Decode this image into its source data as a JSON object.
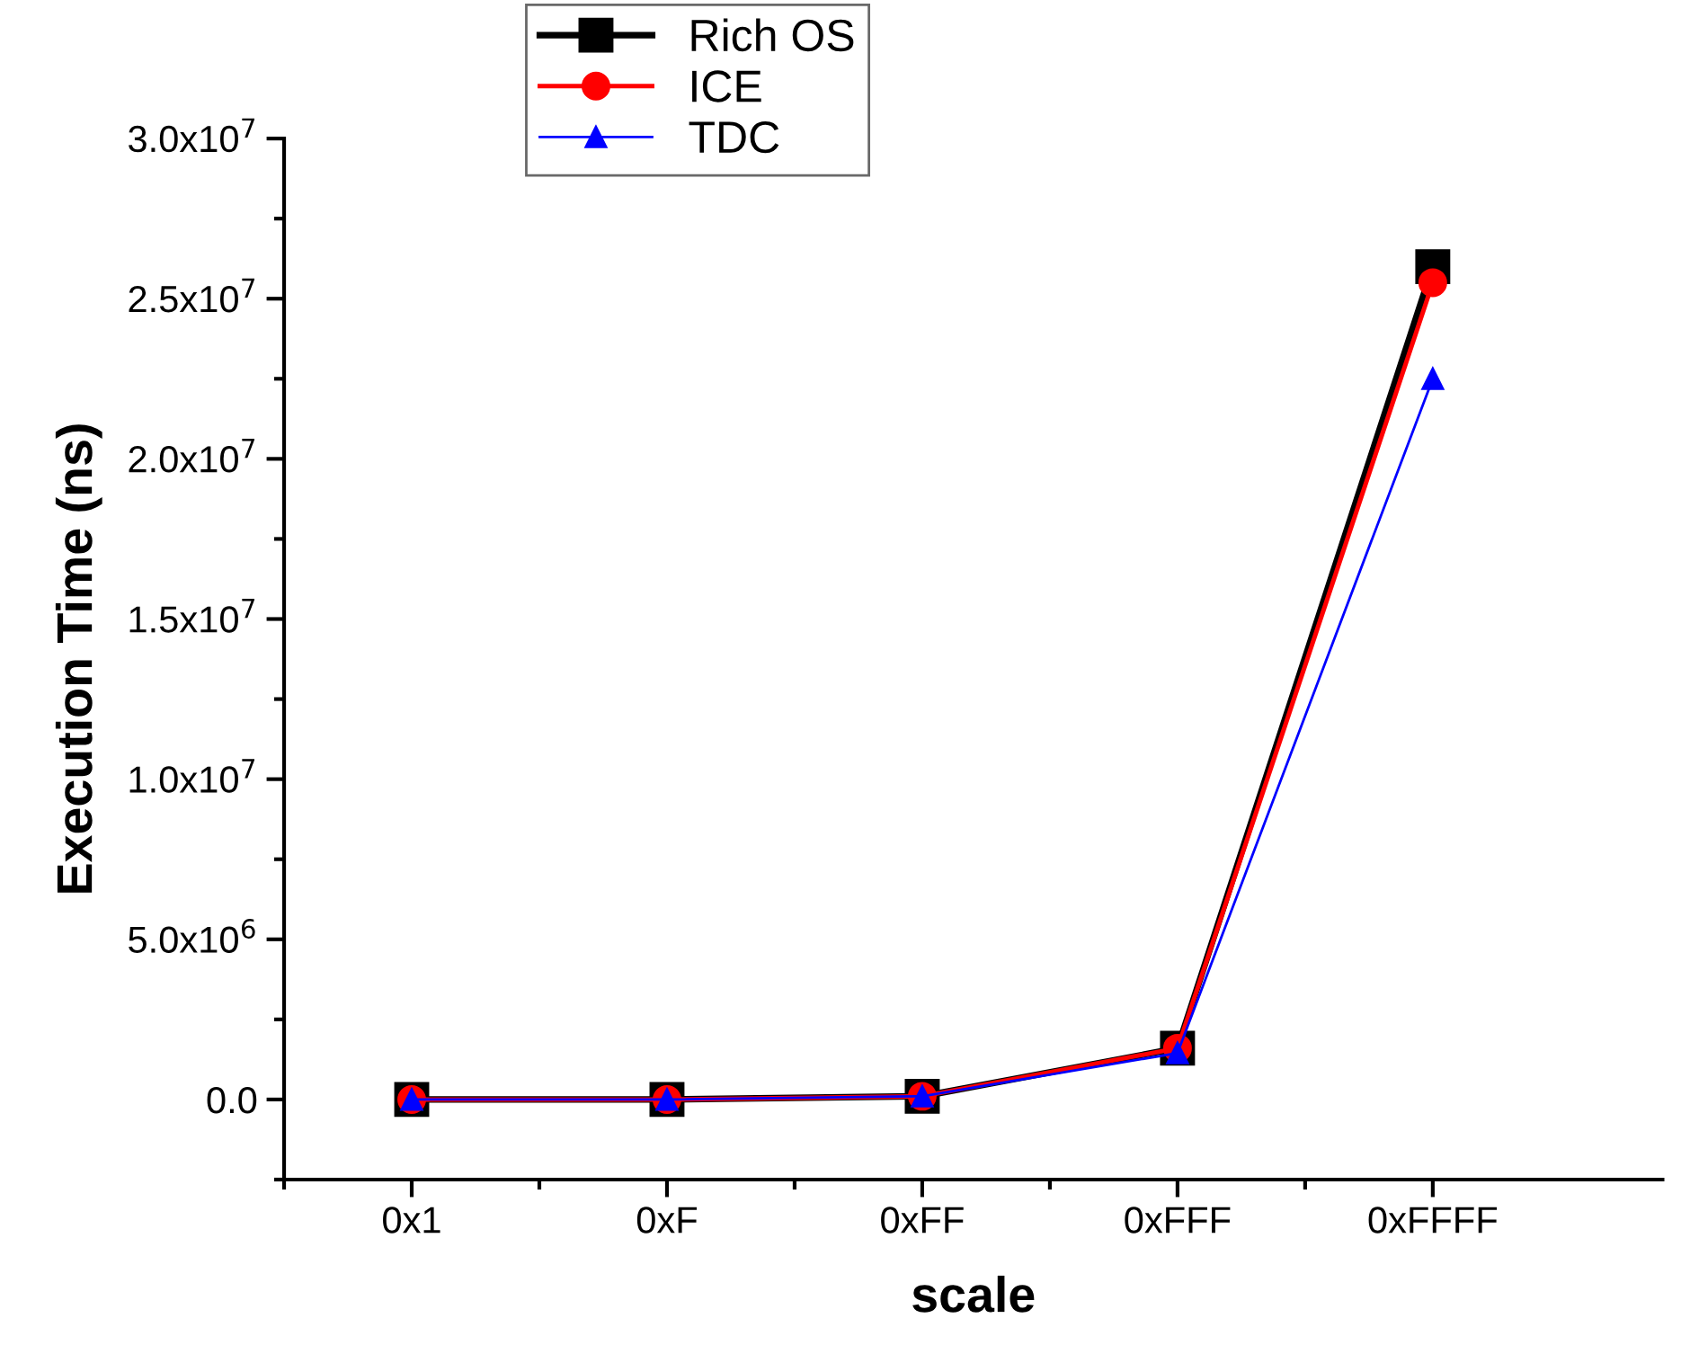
{
  "chart_data": {
    "type": "line",
    "xlabel": "scale",
    "ylabel": "Execution Time (ns)",
    "categories": [
      "0x1",
      "0xF",
      "0xFF",
      "0xFFF",
      "0xFFFF"
    ],
    "series": [
      {
        "name": "Rich OS",
        "color": "#000000",
        "marker": "square",
        "values": [
          0,
          0,
          100000,
          1600000,
          26000000
        ]
      },
      {
        "name": "ICE",
        "color": "#ff0000",
        "marker": "circle",
        "values": [
          0,
          0,
          100000,
          1600000,
          25500000
        ]
      },
      {
        "name": "TDC",
        "color": "#0000ff",
        "marker": "triangle",
        "values": [
          0,
          0,
          100000,
          1450000,
          22500000
        ]
      }
    ],
    "ylim": [
      -2500000,
      30000000
    ],
    "yticks": [
      {
        "value": 0,
        "label": "0.0"
      },
      {
        "value": 5000000,
        "label": "5.0x10$^{6}$"
      },
      {
        "value": 10000000,
        "label": "1.0x10$^{7}$"
      },
      {
        "value": 15000000,
        "label": "1.5x10$^{7}$"
      },
      {
        "value": 20000000,
        "label": "2.0x10$^{7}$"
      },
      {
        "value": 25000000,
        "label": "2.5x10$^{7}$"
      },
      {
        "value": 30000000,
        "label": "3.0x10$^{7}$"
      }
    ],
    "grid": false,
    "legend": "top",
    "line_style": "solid"
  }
}
